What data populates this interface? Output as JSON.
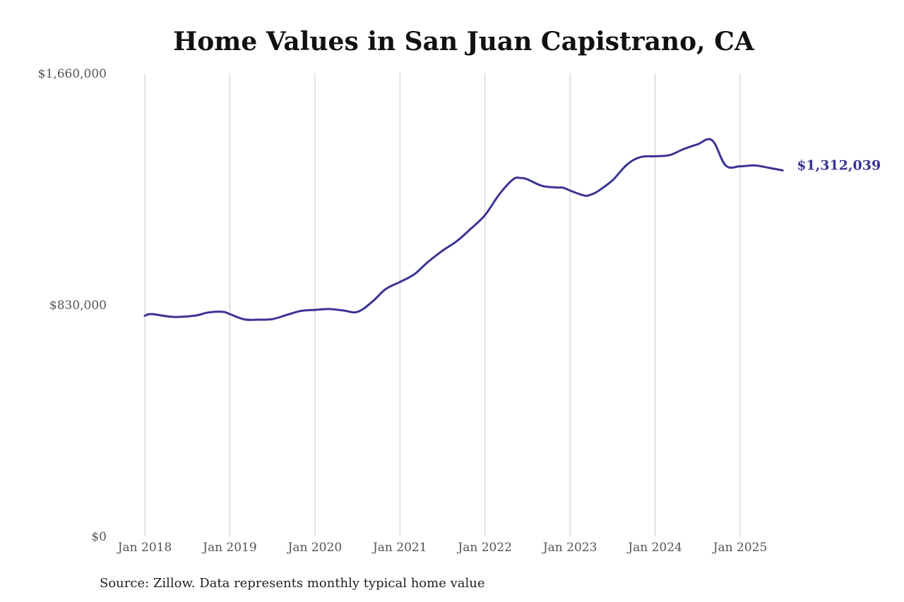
{
  "chart_data": {
    "type": "line",
    "title": "Home Values in San Juan Capistrano, CA",
    "xlabel": "",
    "ylabel": "",
    "ylim": [
      0,
      1660000
    ],
    "y_ticks": [
      {
        "value": 0,
        "label": "$0"
      },
      {
        "value": 830000,
        "label": "$830,000"
      },
      {
        "value": 1660000,
        "label": "$1,660,000"
      }
    ],
    "x_ticks": [
      {
        "value": 2018.0,
        "label": "Jan 2018"
      },
      {
        "value": 2019.0,
        "label": "Jan 2019"
      },
      {
        "value": 2020.0,
        "label": "Jan 2020"
      },
      {
        "value": 2021.0,
        "label": "Jan 2021"
      },
      {
        "value": 2022.0,
        "label": "Jan 2022"
      },
      {
        "value": 2023.0,
        "label": "Jan 2023"
      },
      {
        "value": 2024.0,
        "label": "Jan 2024"
      },
      {
        "value": 2025.0,
        "label": "Jan 2025"
      }
    ],
    "grid": "vertical",
    "series": [
      {
        "color": "#3b3494",
        "end_label": "$1,312,039",
        "x": [
          2018.0,
          2018.08,
          2018.33,
          2018.58,
          2018.75,
          2018.92,
          2019.0,
          2019.17,
          2019.33,
          2019.5,
          2019.67,
          2019.83,
          2020.0,
          2020.17,
          2020.33,
          2020.5,
          2020.67,
          2020.83,
          2021.0,
          2021.17,
          2021.33,
          2021.5,
          2021.67,
          2021.83,
          2022.0,
          2022.17,
          2022.33,
          2022.42,
          2022.5,
          2022.67,
          2022.83,
          2022.92,
          2023.0,
          2023.17,
          2023.25,
          2023.33,
          2023.5,
          2023.67,
          2023.83,
          2024.0,
          2024.17,
          2024.33,
          2024.5,
          2024.67,
          2024.83,
          2025.0,
          2025.17,
          2025.33,
          2025.5
        ],
        "y": [
          791000,
          797000,
          787000,
          791000,
          803000,
          805000,
          797000,
          778000,
          777000,
          779000,
          794000,
          808000,
          812000,
          815000,
          810000,
          805000,
          840000,
          886000,
          912000,
          940000,
          984000,
          1024000,
          1059000,
          1102000,
          1152000,
          1227000,
          1280000,
          1285000,
          1280000,
          1257000,
          1251000,
          1250000,
          1240000,
          1222000,
          1226000,
          1238000,
          1277000,
          1333000,
          1360000,
          1363000,
          1367000,
          1388000,
          1406000,
          1420000,
          1330000,
          1327000,
          1330000,
          1322000,
          1312039
        ]
      }
    ],
    "source": "Source: Zillow. Data represents monthly typical home value"
  }
}
